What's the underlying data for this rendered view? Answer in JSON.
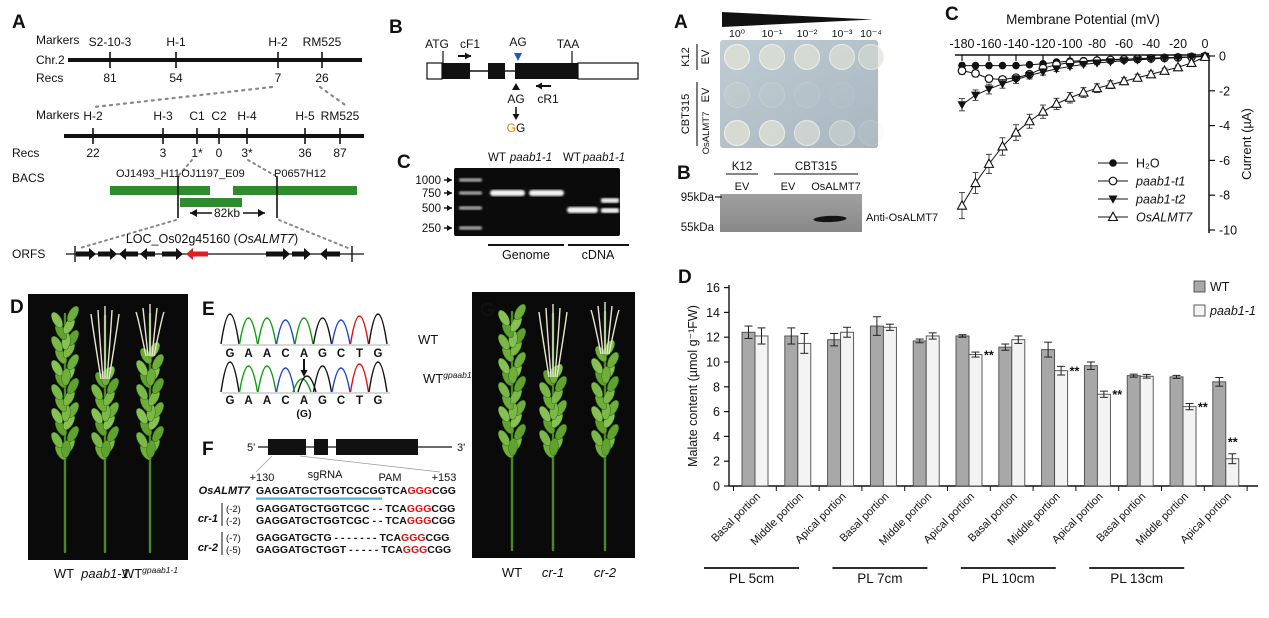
{
  "panel_a_map": {
    "panel_label": "A",
    "row_labels": {
      "markers": "Markers",
      "chr": "Chr.2",
      "recs": "Recs",
      "bacs": "BACS",
      "orfs": "ORFS"
    },
    "coarse_map": {
      "markers": [
        "S2-10-3",
        "H-1",
        "H-2",
        "RM525"
      ],
      "recs": [
        "81",
        "54",
        "7",
        "26"
      ]
    },
    "fine_map": {
      "markers": [
        "H-2",
        "H-3",
        "C1",
        "C2",
        "H-4",
        "H-5",
        "RM525"
      ],
      "recs": [
        "22",
        "3",
        "1*",
        "0",
        "3*",
        "36",
        "87"
      ]
    },
    "bacs": [
      "OJ1493_H11",
      "OJ1197_E09",
      "P0657H12"
    ],
    "interval_label": "82kb",
    "orf_label_plain": "LOC_Os02g45160 (",
    "orf_label_italic": "OsALMT7",
    "orf_label_close": ")",
    "bac_color": "#2e8b2e",
    "red_orf_color": "#e02020"
  },
  "panel_b_gene": {
    "panel_label": "B",
    "start_codon": "ATG",
    "primer_f": "cF1",
    "splice_site": "AG",
    "stop_codon": "TAA",
    "mutation_from": "AG",
    "mutation_to_first": "G",
    "mutation_to_second": "G",
    "primer_r": "cR1",
    "blue_color": "#2255cc",
    "orange_color": "#e08000"
  },
  "panel_c_gel": {
    "panel_label": "C",
    "lane_labels": [
      {
        "text": "WT",
        "italic": false
      },
      {
        "text": "paab1-1",
        "italic": true
      },
      {
        "text": "WT",
        "italic": false
      },
      {
        "text": "paab1-1",
        "italic": true
      }
    ],
    "ladder_labels": [
      "1000",
      "750",
      "500",
      "250"
    ],
    "group_labels": [
      "Genome",
      "cDNA"
    ]
  },
  "panel_d_photo": {
    "panel_label": "D",
    "labels": [
      {
        "text": "WT",
        "italic": false,
        "sup": ""
      },
      {
        "text": "paab1-1",
        "italic": true,
        "sup": ""
      },
      {
        "text": "WT",
        "italic": false,
        "sup": "gpaab1-1"
      }
    ]
  },
  "panel_e_chromatogram": {
    "panel_label": "E",
    "wt_sequence": [
      "G",
      "A",
      "A",
      "C",
      "A",
      "G",
      "C",
      "T",
      "G"
    ],
    "mut_sequence": [
      "G",
      "A",
      "A",
      "C",
      "A",
      "G",
      "C",
      "T",
      "G"
    ],
    "het_position": 5,
    "het_note": "(G)",
    "wt_label": "WT",
    "mut_label": "WT",
    "mut_label_sup": "gpaab1-1",
    "base_colors": {
      "A": "#0f9b0f",
      "C": "#2244cc",
      "G": "#111111",
      "T": "#dd1111"
    }
  },
  "panel_f_crispr": {
    "panel_label": "F",
    "five_prime": "5'",
    "three_prime": "3'",
    "pos_left": "+130",
    "sgrna_label": "sgRNA",
    "pam_label": "PAM",
    "pos_right": "+153",
    "ref_name": "OsALMT7",
    "ref_seq": "GAGGATGCTGGTCGCGGTCA",
    "pam_seq": "GGG",
    "tail_seq": "CGG",
    "underline_color": "#55aadd",
    "pam_color": "#dd1111",
    "alleles": [
      {
        "name": "cr-1",
        "rows": [
          {
            "del": "(-2)",
            "seq": "GAGGATGCTGGTCGC - - TCA"
          },
          {
            "del": "(-2)",
            "seq": "GAGGATGCTGGTCGC - - TCA"
          }
        ]
      },
      {
        "name": "cr-2",
        "rows": [
          {
            "del": "(-7)",
            "seq": "GAGGATGCTG - - - - - - - TCA"
          },
          {
            "del": "(-5)",
            "seq": "GAGGATGCTGGT - - - - - TCA"
          }
        ]
      }
    ]
  },
  "panel_g_photo": {
    "panel_label": "G",
    "labels": [
      {
        "text": "WT",
        "italic": false,
        "sup": ""
      },
      {
        "text": "cr-1",
        "italic": true,
        "sup": ""
      },
      {
        "text": "cr-2",
        "italic": true,
        "sup": ""
      }
    ]
  },
  "panel_a2_drop": {
    "panel_label": "A",
    "dilutions": [
      "10⁰",
      "10⁻¹",
      "10⁻²",
      "10⁻³",
      "10⁻⁴"
    ],
    "groups": [
      {
        "strain": "K12",
        "rows": [
          {
            "label": "EV",
            "spots": [
              0.95,
              0.9,
              0.85,
              0.75,
              0.6
            ]
          }
        ]
      },
      {
        "strain": "CBT315",
        "rows": [
          {
            "label": "EV",
            "spots": [
              0.18,
              0.12,
              0.08,
              0.04,
              0
            ]
          },
          {
            "label": "OsALMT7",
            "spots": [
              0.9,
              0.85,
              0.7,
              0.45,
              0.12
            ]
          }
        ]
      }
    ],
    "plate_color_top": "#c0ccd4",
    "plate_color_bottom": "#a9b6bf"
  },
  "panel_b2_blot": {
    "panel_label": "B",
    "group_labels": [
      "K12",
      "CBT315"
    ],
    "lane_labels": [
      "EV",
      "EV",
      "OsALMT7"
    ],
    "mw_labels": [
      "95kDa",
      "55kDa"
    ],
    "antibody_label": "Anti-OsALMT7"
  },
  "chart_data": [
    {
      "panel_label": "C",
      "type": "line",
      "title": "Membrane Potential (mV)",
      "ylabel": "Current (µA)",
      "x": [
        -180,
        -170,
        -160,
        -150,
        -140,
        -130,
        -120,
        -110,
        -100,
        -90,
        -80,
        -70,
        -60,
        -50,
        -40,
        -30,
        -20,
        -10,
        0
      ],
      "xticks": [
        -180,
        -160,
        -140,
        -120,
        -100,
        -80,
        -60,
        -40,
        -20,
        0
      ],
      "yticks": [
        0,
        -2,
        -4,
        -6,
        -8,
        -10
      ],
      "ylim": [
        -10,
        0.5
      ],
      "legend_position": "bottom-right",
      "series": [
        {
          "name": "H₂O",
          "marker": "filled-circle",
          "italic": false,
          "values": [
            -0.55,
            -0.55,
            -0.55,
            -0.55,
            -0.55,
            -0.5,
            -0.45,
            -0.35,
            -0.3,
            -0.27,
            -0.23,
            -0.2,
            -0.18,
            -0.15,
            -0.12,
            -0.1,
            -0.08,
            -0.05,
            -0.02
          ],
          "errors": [
            0.15,
            0.12,
            0.12,
            0.12,
            0.12,
            0.1,
            0.1,
            0.1,
            0.08,
            0.08,
            0.08,
            0.08,
            0.06,
            0.06,
            0.06,
            0.05,
            0.05,
            0.05,
            0.03
          ]
        },
        {
          "name": "paab1-t1",
          "marker": "open-circle",
          "italic": true,
          "values": [
            -0.85,
            -1.0,
            -1.3,
            -1.35,
            -1.25,
            -1.05,
            -0.7,
            -0.5,
            -0.38,
            -0.32,
            -0.27,
            -0.23,
            -0.2,
            -0.17,
            -0.14,
            -0.11,
            -0.08,
            -0.05,
            -0.02
          ],
          "errors": [
            0.2,
            0.2,
            0.18,
            0.18,
            0.15,
            0.15,
            0.12,
            0.1,
            0.1,
            0.08,
            0.08,
            0.08,
            0.06,
            0.06,
            0.05,
            0.05,
            0.05,
            0.04,
            0.03
          ]
        },
        {
          "name": "paab1-t2",
          "marker": "filled-triangle-down",
          "italic": true,
          "values": [
            -2.8,
            -2.25,
            -1.9,
            -1.6,
            -1.35,
            -1.12,
            -0.92,
            -0.74,
            -0.6,
            -0.48,
            -0.4,
            -0.33,
            -0.27,
            -0.22,
            -0.17,
            -0.13,
            -0.1,
            -0.06,
            -0.02
          ],
          "errors": [
            0.35,
            0.3,
            0.28,
            0.25,
            0.22,
            0.2,
            0.18,
            0.15,
            0.12,
            0.1,
            0.1,
            0.08,
            0.08,
            0.06,
            0.06,
            0.05,
            0.05,
            0.04,
            0.03
          ]
        },
        {
          "name": "OsALMT7",
          "marker": "open-triangle-up",
          "italic": true,
          "values": [
            -8.6,
            -7.3,
            -6.2,
            -5.2,
            -4.4,
            -3.75,
            -3.2,
            -2.75,
            -2.4,
            -2.1,
            -1.85,
            -1.65,
            -1.45,
            -1.25,
            -1.05,
            -0.85,
            -0.65,
            -0.4,
            -0.05
          ],
          "errors": [
            0.75,
            0.6,
            0.55,
            0.5,
            0.45,
            0.4,
            0.38,
            0.32,
            0.3,
            0.28,
            0.25,
            0.22,
            0.2,
            0.2,
            0.18,
            0.15,
            0.12,
            0.1,
            0.05
          ]
        }
      ]
    },
    {
      "panel_label": "D",
      "type": "bar",
      "ylabel": "Malate content (µmol g⁻¹FW)",
      "ylim": [
        0,
        16
      ],
      "yticks": [
        0,
        2,
        4,
        6,
        8,
        10,
        12,
        14,
        16
      ],
      "portion_labels": [
        "Basal portion",
        "Middle portion",
        "Apical portion"
      ],
      "groups": [
        {
          "label": "PL 5cm"
        },
        {
          "label": "PL 7cm"
        },
        {
          "label": "PL 10cm"
        },
        {
          "label": "PL 13cm"
        }
      ],
      "series": [
        {
          "name": "WT",
          "italic": false,
          "color": "#a8a8a8",
          "values": [
            12.4,
            12.1,
            11.8,
            12.9,
            11.7,
            12.1,
            11.2,
            11.0,
            9.7,
            8.9,
            8.8,
            8.4
          ],
          "errors": [
            0.5,
            0.65,
            0.5,
            0.75,
            0.15,
            0.1,
            0.25,
            0.6,
            0.3,
            0.12,
            0.12,
            0.35
          ]
        },
        {
          "name": "paab1-1",
          "italic": true,
          "color": "#f3f3f3",
          "values": [
            12.1,
            11.5,
            12.4,
            12.8,
            12.1,
            10.6,
            11.8,
            9.3,
            7.4,
            8.85,
            6.4,
            2.2
          ],
          "errors": [
            0.65,
            0.8,
            0.4,
            0.25,
            0.25,
            0.2,
            0.3,
            0.35,
            0.25,
            0.15,
            0.25,
            0.4
          ]
        }
      ],
      "significance": [
        "",
        "",
        "",
        "",
        "",
        "**",
        "",
        "**",
        "**",
        "",
        "**",
        "**"
      ]
    }
  ]
}
